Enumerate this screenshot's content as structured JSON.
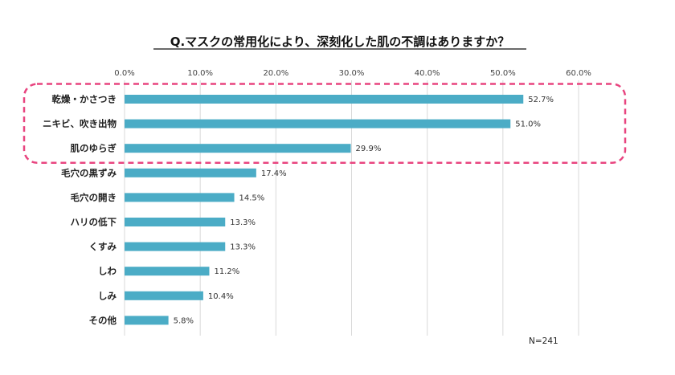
{
  "chart_data": {
    "type": "bar",
    "orientation": "horizontal",
    "title": "Q.マスクの常用化により、深刻化した肌の不調はありますか？",
    "categories": [
      "乾燥・かさつき",
      "ニキビ、吹き出物",
      "肌のゆらぎ",
      "毛穴の黒ずみ",
      "毛穴の開き",
      "ハリの低下",
      "くすみ",
      "しわ",
      "しみ",
      "その他"
    ],
    "values": [
      52.7,
      51.0,
      29.9,
      17.4,
      14.5,
      13.3,
      13.3,
      11.2,
      10.4,
      5.8
    ],
    "value_labels": [
      "52.7%",
      "51.0%",
      "29.9%",
      "17.4%",
      "14.5%",
      "13.3%",
      "13.3%",
      "11.2%",
      "10.4%",
      "5.8%"
    ],
    "x_ticks": [
      0,
      10,
      20,
      30,
      40,
      50,
      60
    ],
    "x_tick_labels": [
      "0.0%",
      "10.0%",
      "20.0%",
      "30.0%",
      "40.0%",
      "50.0%",
      "60.0%"
    ],
    "xlim": [
      0,
      60
    ],
    "xaxis_position": "top",
    "grid": true,
    "highlight": {
      "categories": [
        "乾燥・かさつき",
        "ニキビ、吹き出物",
        "肌のゆらぎ"
      ],
      "style": "pink-dashed-rounded-box",
      "color": "#e8447f"
    },
    "bar_color": "#4bacc6",
    "grid_color": "#d9d9d9",
    "note": "N=241"
  }
}
